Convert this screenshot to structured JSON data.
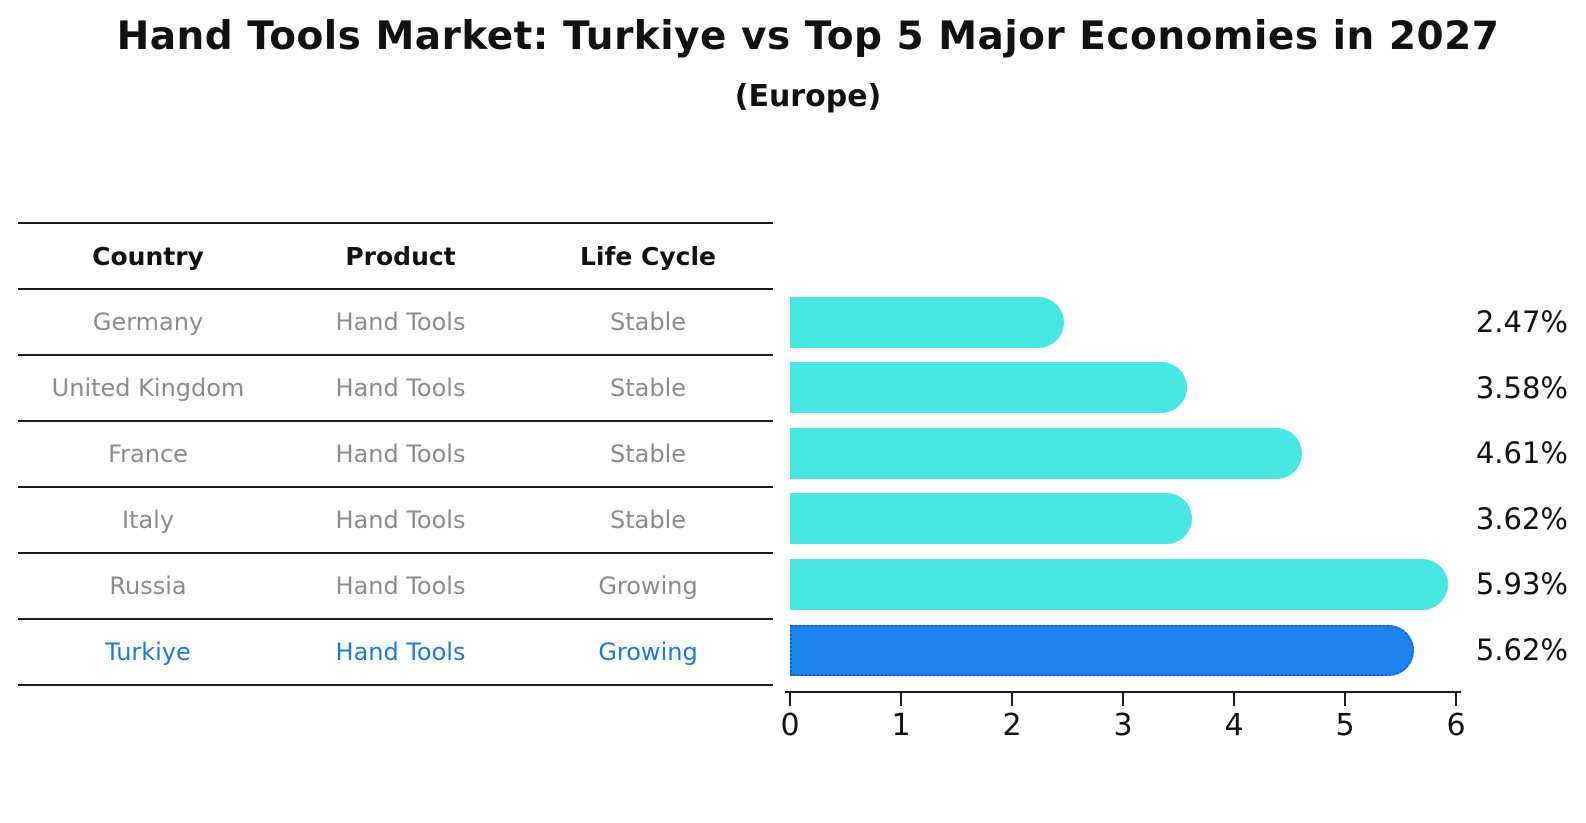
{
  "title": "Hand Tools Market: Turkiye vs Top 5 Major Economies in 2027",
  "subtitle": "(Europe)",
  "table": {
    "headers": [
      "Country",
      "Product",
      "Life Cycle"
    ],
    "rows": [
      {
        "country": "Germany",
        "product": "Hand Tools",
        "life_cycle": "Stable",
        "highlighted": false
      },
      {
        "country": "United Kingdom",
        "product": "Hand Tools",
        "life_cycle": "Stable",
        "highlighted": false
      },
      {
        "country": "France",
        "product": "Hand Tools",
        "life_cycle": "Stable",
        "highlighted": false
      },
      {
        "country": "Italy",
        "product": "Hand Tools",
        "life_cycle": "Stable",
        "highlighted": false
      },
      {
        "country": "Russia",
        "product": "Hand Tools",
        "life_cycle": "Growing",
        "highlighted": false
      },
      {
        "country": "Turkiye",
        "product": "Hand Tools",
        "life_cycle": "Growing",
        "highlighted": true
      }
    ]
  },
  "chart_data": {
    "type": "bar",
    "orientation": "horizontal",
    "title": "Hand Tools Market: Turkiye vs Top 5 Major Economies in 2027",
    "subtitle": "(Europe)",
    "categories": [
      "Germany",
      "United Kingdom",
      "France",
      "Italy",
      "Russia",
      "Turkiye"
    ],
    "values": [
      2.47,
      3.58,
      4.61,
      3.62,
      5.93,
      5.62
    ],
    "value_labels": [
      "2.47%",
      "3.58%",
      "4.61%",
      "3.62%",
      "5.93%",
      "5.62%"
    ],
    "highlight_index": 5,
    "xlim": [
      0,
      6
    ],
    "x_ticks": [
      "0",
      "1",
      "2",
      "3",
      "4",
      "5",
      "6"
    ],
    "grid": false,
    "legend": false,
    "bar_color": "#48e7e3",
    "highlight_bar_color": "#1c82ee",
    "highlight_border_color": "#1560c8",
    "highlight_text_color": "#1e79d3"
  },
  "colors": {
    "background": "#ffffff",
    "text": "#111111",
    "muted_text": "#8b8b8b",
    "line": "#1c1c1c"
  }
}
